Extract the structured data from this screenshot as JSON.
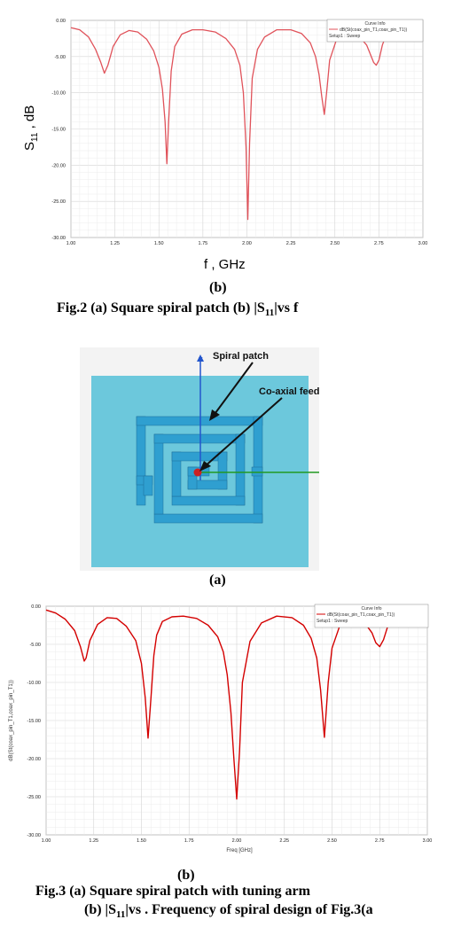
{
  "chart_data": [
    {
      "type": "line",
      "xlabel": "f ,  GHz",
      "ylabel_main": "S",
      "ylabel_sub": "11",
      "ylabel_tail": " , dB",
      "xlim": [
        1.0,
        3.0
      ],
      "ylim": [
        -30.0,
        0.0
      ],
      "xticks": [
        "1.00",
        "1.25",
        "1.50",
        "1.75",
        "2.00",
        "2.25",
        "2.50",
        "2.75",
        "3.00"
      ],
      "yticks": [
        "0.00",
        "-5.00",
        "-10.00",
        "-15.00",
        "-20.00",
        "-25.00",
        "-30.00"
      ],
      "grid": true,
      "legend": {
        "title": "Curve Info",
        "entry": "dB(St(coax_pin_T1,coax_pin_T1))",
        "setup": "Setup1 : Sweep",
        "placement": "top-right"
      },
      "series": [
        {
          "color": "#e0525a",
          "x": [
            1.0,
            1.05,
            1.1,
            1.14,
            1.17,
            1.19,
            1.21,
            1.24,
            1.28,
            1.33,
            1.38,
            1.43,
            1.47,
            1.5,
            1.52,
            1.535,
            1.545,
            1.555,
            1.57,
            1.59,
            1.63,
            1.69,
            1.75,
            1.82,
            1.88,
            1.93,
            1.96,
            1.98,
            1.995,
            2.005,
            2.015,
            2.03,
            2.06,
            2.1,
            2.17,
            2.25,
            2.31,
            2.36,
            2.39,
            2.41,
            2.425,
            2.44,
            2.455,
            2.47,
            2.51,
            2.57,
            2.63,
            2.68,
            2.7,
            2.72,
            2.735,
            2.75,
            2.77,
            2.8
          ],
          "y": [
            -1.0,
            -1.3,
            -2.3,
            -4.0,
            -5.8,
            -7.3,
            -6.2,
            -3.6,
            -2.0,
            -1.4,
            -1.6,
            -2.6,
            -4.2,
            -6.5,
            -9.5,
            -14.0,
            -19.8,
            -14.0,
            -7.0,
            -3.6,
            -1.9,
            -1.3,
            -1.3,
            -1.6,
            -2.5,
            -4.0,
            -6.2,
            -10.0,
            -17.5,
            -27.5,
            -17.0,
            -8.0,
            -4.0,
            -2.3,
            -1.3,
            -1.3,
            -1.8,
            -3.1,
            -5.0,
            -7.5,
            -10.5,
            -13.0,
            -9.5,
            -5.5,
            -2.6,
            -1.5,
            -2.0,
            -3.4,
            -4.6,
            -5.8,
            -6.2,
            -5.5,
            -3.4,
            -1.4
          ]
        }
      ]
    },
    {
      "type": "line",
      "xlabel": "Freq [GHz]",
      "ylabel": "dB(St(coax_pin_T1,coax_pin_T1))",
      "xlim": [
        1.0,
        3.0
      ],
      "ylim": [
        -30.0,
        0.0
      ],
      "xticks": [
        "1.00",
        "1.25",
        "1.50",
        "1.75",
        "2.00",
        "2.25",
        "2.50",
        "2.75",
        "3.00"
      ],
      "yticks": [
        "0.00",
        "-5.00",
        "-10.00",
        "-15.00",
        "-20.00",
        "-25.00",
        "-30.00"
      ],
      "grid": true,
      "legend": {
        "title": "Curve Info",
        "entry": "dB(St(coax_pin_T1,coax_pin_T1))",
        "setup": "Setup1 : Sweep",
        "placement": "top-right"
      },
      "series": [
        {
          "color": "#d40000",
          "x": [
            1.0,
            1.05,
            1.1,
            1.15,
            1.18,
            1.2,
            1.21,
            1.23,
            1.27,
            1.32,
            1.37,
            1.42,
            1.47,
            1.5,
            1.52,
            1.535,
            1.55,
            1.565,
            1.58,
            1.61,
            1.66,
            1.72,
            1.79,
            1.85,
            1.9,
            1.93,
            1.95,
            1.97,
            1.985,
            2.0,
            2.015,
            2.03,
            2.07,
            2.13,
            2.21,
            2.29,
            2.35,
            2.39,
            2.42,
            2.44,
            2.46,
            2.48,
            2.5,
            2.54,
            2.6,
            2.66,
            2.71,
            2.73,
            2.75,
            2.77,
            2.79,
            2.82
          ],
          "y": [
            -0.5,
            -0.9,
            -1.7,
            -3.2,
            -5.3,
            -7.2,
            -6.8,
            -4.5,
            -2.4,
            -1.5,
            -1.6,
            -2.6,
            -4.5,
            -7.5,
            -12.0,
            -17.3,
            -12.0,
            -6.5,
            -3.8,
            -2.0,
            -1.4,
            -1.3,
            -1.6,
            -2.5,
            -4.0,
            -6.0,
            -9.0,
            -14.0,
            -20.0,
            -25.3,
            -19.0,
            -10.0,
            -4.6,
            -2.2,
            -1.3,
            -1.5,
            -2.5,
            -4.2,
            -6.8,
            -11.0,
            -17.2,
            -10.0,
            -5.5,
            -2.6,
            -1.4,
            -1.8,
            -3.5,
            -4.8,
            -5.3,
            -4.4,
            -2.8,
            -0.8
          ]
        }
      ]
    }
  ],
  "captions": {
    "fig2_sub": "(b)",
    "fig2_title": "Fig.2 (a) Square spiral patch (b) |S",
    "fig2_title_sub": "11",
    "fig2_title_tail": "|vs f",
    "fig3a_sub": "(a)",
    "fig3b_sub": "(b)",
    "fig3_title_line1": "Fig.3 (a) Square spiral patch with tuning arm",
    "fig3_title_line2_a": "(b) |S",
    "fig3_title_line2_sub": "11",
    "fig3_title_line2_b": "|vs . Frequency of spiral design of Fig.3(a"
  },
  "diagram": {
    "spiral_label": "Spiral patch",
    "feed_label": "Co-axial feed",
    "y_axis": "Y",
    "x_axis": "X",
    "colors": {
      "substrate": "#6cc8dc",
      "spiral": "#2f9fd0",
      "feed": "#cc2222",
      "yaxis": "#2255cc",
      "xaxis": "#229922"
    }
  }
}
